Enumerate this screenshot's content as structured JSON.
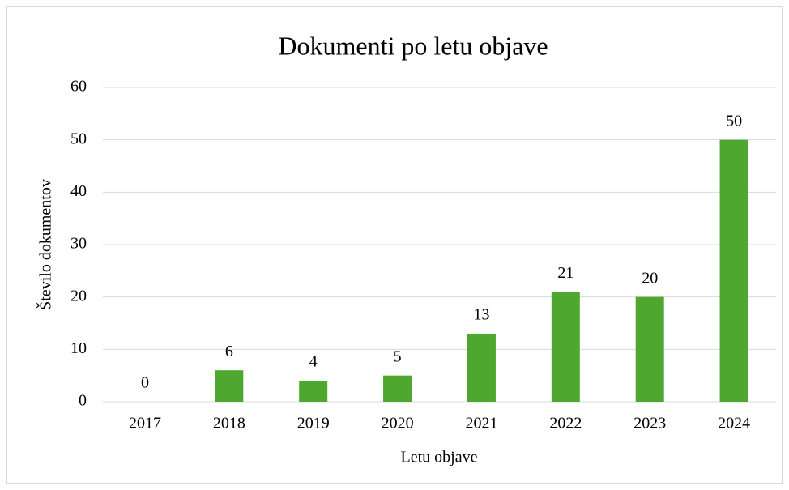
{
  "chart_data": {
    "type": "bar",
    "title": "Dokumenti po letu objave",
    "xlabel": "Letu objave",
    "ylabel": "Število dokumentov",
    "categories": [
      "2017",
      "2018",
      "2019",
      "2020",
      "2021",
      "2022",
      "2023",
      "2024"
    ],
    "values": [
      0,
      6,
      4,
      5,
      13,
      21,
      20,
      50
    ],
    "color": "#4ea72e",
    "ylim": [
      0,
      60
    ],
    "yticks": [
      0,
      10,
      20,
      30,
      40,
      50,
      60
    ],
    "grid": true
  }
}
